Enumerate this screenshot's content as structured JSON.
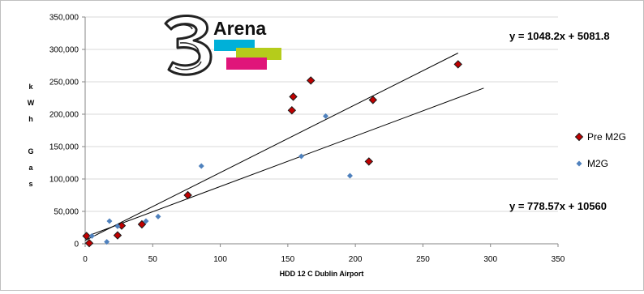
{
  "chart_data": {
    "type": "scatter",
    "title": "",
    "xlabel": "HDD 12 C Dublin Airport",
    "ylabel_letters": [
      "k",
      "W",
      "h",
      "",
      "G",
      "a",
      "s"
    ],
    "xlim": [
      0,
      350
    ],
    "ylim": [
      0,
      350000
    ],
    "x_ticks": [
      0,
      50,
      100,
      150,
      200,
      250,
      300,
      350
    ],
    "x_tick_labels": [
      "0",
      "50",
      "100",
      "150",
      "200",
      "250",
      "300",
      "350"
    ],
    "y_ticks": [
      0,
      50000,
      100000,
      150000,
      200000,
      250000,
      300000,
      350000
    ],
    "y_tick_labels": [
      "0",
      "50,000",
      "100,000",
      "150,000",
      "200,000",
      "250,000",
      "300,000",
      "350,000"
    ],
    "grid": "horizontal",
    "legend_position": "right",
    "series": [
      {
        "name": "Pre M2G",
        "color": "#c00000",
        "marker": "diamond",
        "points": [
          [
            1,
            12000
          ],
          [
            3,
            1000
          ],
          [
            24,
            13000
          ],
          [
            27,
            28000
          ],
          [
            42,
            30000
          ],
          [
            76,
            75000
          ],
          [
            153,
            206000
          ],
          [
            154,
            227000
          ],
          [
            167,
            252000
          ],
          [
            210,
            127000
          ],
          [
            213,
            222000
          ],
          [
            276,
            277000
          ]
        ],
        "trendline": {
          "slope": 1048.2,
          "intercept": 5081.8,
          "x_range": [
            0,
            276
          ],
          "equation": "y = 1048.2x + 5081.8"
        }
      },
      {
        "name": "M2G",
        "color": "#4f81bd",
        "marker": "diamond",
        "points": [
          [
            5,
            12000
          ],
          [
            16,
            3000
          ],
          [
            18,
            35000
          ],
          [
            24,
            27000
          ],
          [
            45,
            35000
          ],
          [
            54,
            42000
          ],
          [
            86,
            120000
          ],
          [
            160,
            135000
          ],
          [
            178,
            197000
          ],
          [
            196,
            105000
          ]
        ],
        "trendline": {
          "slope": 778.57,
          "intercept": 10560,
          "x_range": [
            0,
            295
          ],
          "equation": "y = 778.57x + 10560"
        }
      }
    ]
  },
  "logo": {
    "name": "3Arena",
    "text": "Arena",
    "colors": [
      "#00b0d8",
      "#b5cc1b",
      "#e0157a"
    ]
  }
}
